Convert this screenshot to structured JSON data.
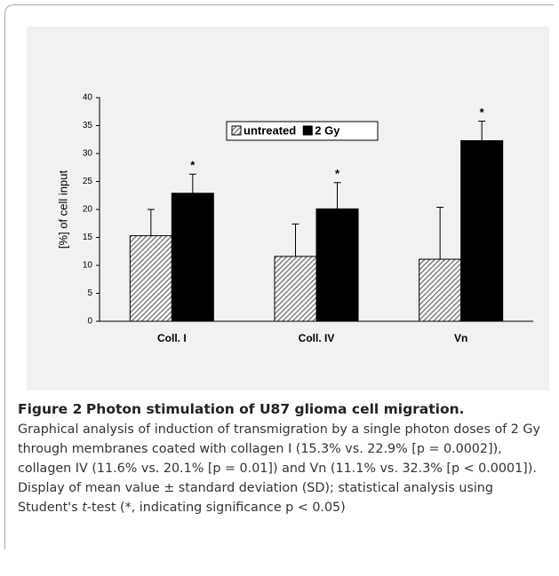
{
  "chart_data": {
    "type": "bar",
    "ylabel": "[%] of cell input",
    "categories": [
      "Coll. I",
      "Coll. IV",
      "Vn"
    ],
    "series": [
      {
        "name": "untreated",
        "color": "#6e6e6e",
        "pattern": "hatched",
        "values": [
          15.3,
          11.6,
          11.1
        ],
        "errors": [
          4.7,
          5.8,
          9.3
        ]
      },
      {
        "name": "2 Gy",
        "color": "#000000",
        "values": [
          22.9,
          20.1,
          32.3
        ],
        "errors": [
          3.4,
          4.7,
          3.5
        ]
      }
    ],
    "significance_marks": [
      "*",
      "*",
      "*"
    ],
    "ylim": [
      0,
      40
    ],
    "yticks": [
      0,
      5,
      10,
      15,
      20,
      25,
      30,
      35,
      40
    ],
    "grid": false,
    "legend": "top"
  },
  "caption": {
    "label": "Figure 2",
    "title": "Photon stimulation of U87 glioma cell migration.",
    "text": [
      "Graphical analysis of induction of transmigration by a single photon doses of 2 Gy through membranes coated with collagen I (15.3% vs. 22.9% [p = 0.0002]), collagen IV (11.6% vs. 20.1% [p = 0.01]) and Vn (11.1% vs. 32.3% [p < 0.0001]). Display of mean value ± standard deviation (SD); statistical analysis using Student's ",
      "t",
      "-test (*, indicating significance p < 0.05)"
    ]
  }
}
